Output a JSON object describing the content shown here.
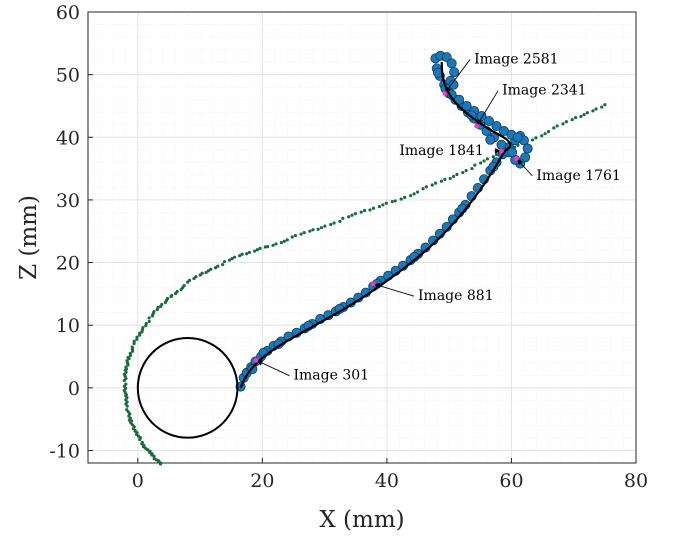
{
  "chart_data": {
    "type": "scatter",
    "xlabel": "X (mm)",
    "ylabel": "Z (mm)",
    "xlim": [
      -8,
      80
    ],
    "ylim": [
      -12,
      60
    ],
    "xticks": [
      0,
      20,
      40,
      60,
      80
    ],
    "yticks": [
      -10,
      0,
      10,
      20,
      30,
      40,
      50,
      60
    ],
    "grid": true,
    "minor_grid": true,
    "circle": {
      "center": [
        8,
        0
      ],
      "radius": 8
    },
    "series": [
      {
        "kind": "trajectory-dots",
        "color": "#1f77b4",
        "edge_color": "#0b3d66",
        "points": [
          [
            16.5,
            0.2
          ],
          [
            17.0,
            1.6
          ],
          [
            17.5,
            2.4
          ],
          [
            18.2,
            3.3
          ],
          [
            18.9,
            4.2
          ],
          [
            19.8,
            5.0
          ],
          [
            20.8,
            5.9
          ],
          [
            21.8,
            6.7
          ],
          [
            23.0,
            7.4
          ],
          [
            24.2,
            8.2
          ],
          [
            25.5,
            8.8
          ],
          [
            26.8,
            9.5
          ],
          [
            28.0,
            10.2
          ],
          [
            29.3,
            11.0
          ],
          [
            30.6,
            11.6
          ],
          [
            31.8,
            12.2
          ],
          [
            33.0,
            12.9
          ],
          [
            34.2,
            13.6
          ],
          [
            35.4,
            14.4
          ],
          [
            36.6,
            15.2
          ],
          [
            37.8,
            16.2
          ],
          [
            39.0,
            17.1
          ],
          [
            40.2,
            17.9
          ],
          [
            41.4,
            18.7
          ],
          [
            42.6,
            19.5
          ],
          [
            43.8,
            20.4
          ],
          [
            45.0,
            21.4
          ],
          [
            46.2,
            22.4
          ],
          [
            47.4,
            23.5
          ],
          [
            48.5,
            24.6
          ],
          [
            49.6,
            25.7
          ],
          [
            50.6,
            26.9
          ],
          [
            51.6,
            28.0
          ],
          [
            52.6,
            29.2
          ],
          [
            53.6,
            30.6
          ],
          [
            54.6,
            31.9
          ],
          [
            55.6,
            33.3
          ],
          [
            56.6,
            34.7
          ],
          [
            57.6,
            36.0
          ],
          [
            58.6,
            37.3
          ],
          [
            59.6,
            38.4
          ],
          [
            60.6,
            39.5
          ],
          [
            61.4,
            40.2
          ],
          [
            62.0,
            39.5
          ],
          [
            62.6,
            38.2
          ],
          [
            62.2,
            36.8
          ],
          [
            61.4,
            35.8
          ],
          [
            60.6,
            36.4
          ],
          [
            59.6,
            37.6
          ],
          [
            58.4,
            38.8
          ],
          [
            57.2,
            40.0
          ],
          [
            56.0,
            41.0
          ],
          [
            55.0,
            42.0
          ],
          [
            54.0,
            43.0
          ],
          [
            53.0,
            44.0
          ],
          [
            52.0,
            45.0
          ],
          [
            51.0,
            46.0
          ],
          [
            50.0,
            47.0
          ],
          [
            49.2,
            48.4
          ],
          [
            48.5,
            49.8
          ],
          [
            48.0,
            51.0
          ],
          [
            47.8,
            52.6
          ],
          [
            48.6,
            53.0
          ],
          [
            49.6,
            52.8
          ],
          [
            50.4,
            51.8
          ],
          [
            50.8,
            50.4
          ],
          [
            50.2,
            49.0
          ],
          [
            49.4,
            47.8
          ],
          [
            50.4,
            46.8
          ],
          [
            51.6,
            46.0
          ],
          [
            52.8,
            45.0
          ],
          [
            54.0,
            44.2
          ],
          [
            55.2,
            43.4
          ],
          [
            56.4,
            42.6
          ],
          [
            57.6,
            41.8
          ],
          [
            58.8,
            41.0
          ],
          [
            60.0,
            40.4
          ],
          [
            61.0,
            40.0
          ],
          [
            18.4,
            3.0
          ],
          [
            20.2,
            5.6
          ],
          [
            22.6,
            7.0
          ],
          [
            27.4,
            9.9
          ],
          [
            32.4,
            12.6
          ],
          [
            38.4,
            16.6
          ],
          [
            44.4,
            20.9
          ],
          [
            52.1,
            28.6
          ],
          [
            57.1,
            35.3
          ],
          [
            60.1,
            37.6
          ],
          [
            56.6,
            39.6
          ],
          [
            53.6,
            43.5
          ],
          [
            50.7,
            48.4
          ],
          [
            48.2,
            50.3
          ]
        ]
      },
      {
        "kind": "smooth-curve",
        "color": "#000000",
        "points": [
          [
            16.5,
            0.0
          ],
          [
            17.3,
            1.7
          ],
          [
            18.4,
            3.2
          ],
          [
            19.8,
            4.6
          ],
          [
            21.5,
            5.9
          ],
          [
            23.5,
            7.2
          ],
          [
            25.8,
            8.5
          ],
          [
            28.3,
            9.9
          ],
          [
            31.0,
            11.4
          ],
          [
            33.8,
            13.0
          ],
          [
            36.7,
            14.8
          ],
          [
            39.6,
            16.8
          ],
          [
            42.5,
            18.9
          ],
          [
            45.4,
            21.2
          ],
          [
            48.2,
            23.7
          ],
          [
            50.9,
            26.5
          ],
          [
            53.4,
            29.5
          ],
          [
            55.6,
            32.5
          ],
          [
            57.5,
            35.4
          ],
          [
            58.9,
            37.7
          ],
          [
            59.8,
            38.6
          ],
          [
            59.4,
            39.5
          ],
          [
            58.2,
            40.3
          ],
          [
            56.6,
            41.2
          ],
          [
            54.9,
            42.3
          ],
          [
            53.1,
            43.6
          ],
          [
            51.5,
            45.0
          ],
          [
            50.2,
            46.6
          ],
          [
            49.3,
            48.4
          ],
          [
            48.9,
            50.2
          ],
          [
            48.8,
            52.0
          ]
        ]
      },
      {
        "kind": "reference-path",
        "color": "#1a6b3c",
        "points": [
          [
            3.8,
            -12.0
          ],
          [
            2.6,
            -11.0
          ],
          [
            1.4,
            -9.8
          ],
          [
            0.4,
            -8.4
          ],
          [
            -0.5,
            -6.8
          ],
          [
            -1.2,
            -5.0
          ],
          [
            -1.7,
            -3.0
          ],
          [
            -2.0,
            -1.0
          ],
          [
            -2.1,
            1.0
          ],
          [
            -1.9,
            3.0
          ],
          [
            -1.4,
            5.0
          ],
          [
            -0.6,
            7.0
          ],
          [
            0.5,
            9.0
          ],
          [
            1.9,
            11.0
          ],
          [
            3.6,
            13.0
          ],
          [
            5.6,
            14.9
          ],
          [
            8.0,
            16.8
          ],
          [
            10.8,
            18.5
          ],
          [
            14.0,
            20.0
          ],
          [
            17.4,
            21.4
          ],
          [
            21.0,
            22.7
          ],
          [
            24.8,
            24.0
          ],
          [
            28.8,
            25.4
          ],
          [
            33.0,
            26.9
          ],
          [
            37.2,
            28.4
          ],
          [
            41.5,
            30.0
          ],
          [
            45.8,
            31.7
          ],
          [
            50.0,
            33.5
          ],
          [
            54.2,
            35.4
          ],
          [
            58.4,
            37.4
          ],
          [
            62.6,
            39.4
          ],
          [
            66.8,
            41.4
          ],
          [
            71.0,
            43.4
          ],
          [
            75.0,
            45.2
          ]
        ]
      }
    ],
    "annotations": [
      {
        "label": "Image 301",
        "point": [
          19.0,
          4.4
        ],
        "text_at": [
          25.0,
          1.3
        ]
      },
      {
        "label": "Image 881",
        "point": [
          37.8,
          16.6
        ],
        "text_at": [
          45.0,
          14.0
        ]
      },
      {
        "label": "Image 1761",
        "point": [
          60.8,
          36.6
        ],
        "text_at": [
          64.0,
          33.2
        ]
      },
      {
        "label": "Image 1841",
        "point": [
          58.4,
          37.8
        ],
        "text_at": [
          42.0,
          37.2
        ]
      },
      {
        "label": "Image 2341",
        "point": [
          54.4,
          41.8
        ],
        "text_at": [
          58.5,
          46.8
        ]
      },
      {
        "label": "Image 2581",
        "point": [
          49.3,
          47.0
        ],
        "text_at": [
          54.0,
          51.8
        ]
      }
    ]
  }
}
